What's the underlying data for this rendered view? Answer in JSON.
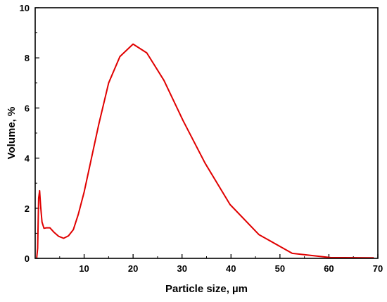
{
  "chart_data": {
    "type": "line",
    "xlabel": "Particle size, µm",
    "ylabel": "Volume, %",
    "xlim": [
      0,
      70
    ],
    "ylim": [
      0,
      10
    ],
    "x_ticks": [
      10,
      20,
      30,
      40,
      50,
      60,
      70
    ],
    "y_ticks": [
      0,
      2,
      4,
      6,
      8,
      10
    ],
    "grid": false,
    "line_color": "#e00000",
    "series": [
      {
        "x": [
          0.3,
          0.5,
          0.7,
          0.9,
          1.1,
          1.4,
          1.8,
          2.3,
          3.0,
          3.8,
          4.8,
          5.8,
          6.8,
          7.8,
          8.8,
          10.0,
          11.5,
          13.0,
          15.0,
          17.3,
          20.0,
          22.8,
          26.3,
          30.2,
          34.7,
          39.8,
          45.7,
          52.5,
          60.3,
          69.2
        ],
        "y": [
          0.0,
          0.4,
          2.4,
          2.7,
          2.1,
          1.45,
          1.2,
          1.22,
          1.22,
          1.05,
          0.88,
          0.8,
          0.9,
          1.15,
          1.75,
          2.65,
          4.0,
          5.35,
          7.0,
          8.05,
          8.55,
          8.2,
          7.1,
          5.5,
          3.8,
          2.15,
          0.95,
          0.2,
          0.03,
          0.02
        ]
      }
    ]
  }
}
